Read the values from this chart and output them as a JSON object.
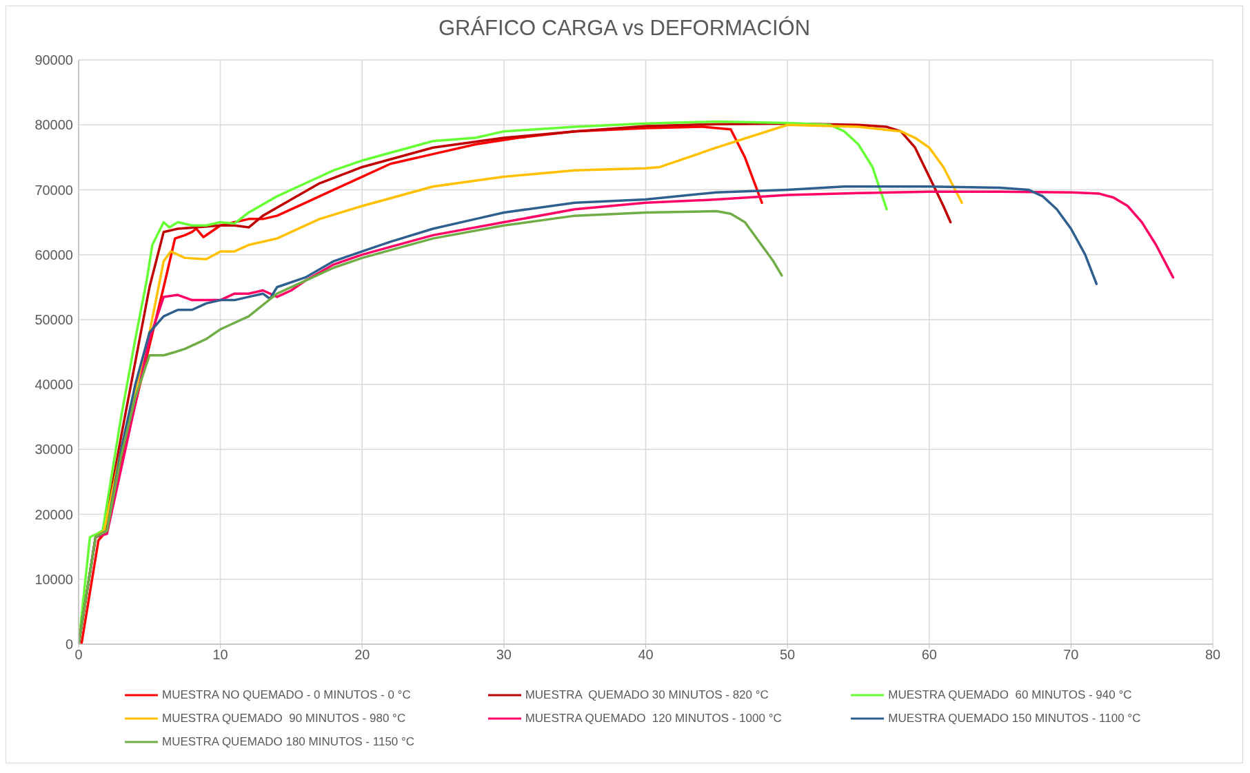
{
  "chart_data": {
    "type": "line",
    "title": "GRÁFICO CARGA vs DEFORMACIÓN",
    "xlim": [
      0,
      80
    ],
    "xticks": [
      0,
      10,
      20,
      30,
      40,
      50,
      60,
      70,
      80
    ],
    "ylim": [
      0,
      90000
    ],
    "yticks": [
      0,
      10000,
      20000,
      30000,
      40000,
      50000,
      60000,
      70000,
      80000,
      90000
    ],
    "grid": true,
    "legend": "bottom",
    "marker": "none",
    "line_style": "solid",
    "series": [
      {
        "name": "MUESTRA NO QUEMADO - 0 MINUTOS - 0 °C",
        "color": "#ff0000",
        "x": [
          0.2,
          1.4,
          1.8,
          3,
          4,
          5,
          6,
          6.8,
          7.5,
          8,
          8.3,
          8.8,
          10,
          11,
          12,
          13,
          14,
          16,
          18,
          20,
          22,
          25,
          28,
          31,
          35,
          40,
          44,
          46,
          47,
          48.2
        ],
        "values": [
          0,
          16000,
          17000,
          28000,
          37000,
          46000,
          55000,
          62500,
          63000,
          63500,
          64000,
          62700,
          64500,
          65000,
          65500,
          65500,
          66000,
          68000,
          70000,
          72000,
          74000,
          75500,
          77000,
          78000,
          79000,
          79500,
          79700,
          79300,
          75000,
          68000
        ]
      },
      {
        "name": "MUESTRA  QUEMADO 30 MINUTOS - 820 °C",
        "color": "#c00000",
        "x": [
          0,
          1.2,
          1.8,
          3,
          5,
          6,
          7,
          10,
          11,
          12,
          13,
          15,
          17,
          20,
          25,
          30,
          35,
          40,
          45,
          50,
          55,
          57,
          58,
          59,
          60,
          61,
          61.5
        ],
        "values": [
          0,
          16500,
          17500,
          32000,
          55000,
          63500,
          64000,
          64500,
          64500,
          64200,
          66000,
          68500,
          71000,
          73500,
          76500,
          78000,
          79000,
          79800,
          80100,
          80200,
          80000,
          79700,
          79000,
          76500,
          72000,
          67500,
          65000
        ]
      },
      {
        "name": "MUESTRA QUEMADO  60 MINUTOS - 940 °C",
        "color": "#66ff33",
        "x": [
          0,
          0.8,
          1.3,
          1.7,
          3,
          4,
          4.8,
          5.2,
          6,
          6.4,
          7,
          8,
          9,
          10,
          11,
          12,
          14,
          16,
          18,
          20,
          25,
          28,
          30,
          35,
          40,
          45,
          50,
          53,
          54,
          55,
          56,
          57
        ],
        "values": [
          0,
          16500,
          17000,
          17500,
          35000,
          47000,
          56000,
          61500,
          65000,
          64200,
          65000,
          64500,
          64500,
          65000,
          64800,
          66500,
          69000,
          71000,
          73000,
          74500,
          77500,
          78000,
          79000,
          79700,
          80200,
          80500,
          80300,
          80000,
          79000,
          77000,
          73500,
          67000
        ]
      },
      {
        "name": "MUESTRA QUEMADO  90 MINUTOS - 980 °C",
        "color": "#ffc000",
        "x": [
          0,
          1.2,
          1.8,
          3,
          5,
          6,
          6.5,
          7.5,
          9,
          10,
          11,
          12,
          14,
          15,
          17,
          20,
          25,
          30,
          35,
          40,
          41,
          45,
          50,
          55,
          58,
          59,
          60,
          61,
          62.3
        ],
        "values": [
          0,
          16500,
          17500,
          30000,
          48000,
          59000,
          60500,
          59500,
          59300,
          60500,
          60500,
          61500,
          62500,
          63500,
          65500,
          67500,
          70500,
          72000,
          73000,
          73300,
          73500,
          76500,
          80000,
          79700,
          79000,
          78000,
          76500,
          73500,
          68000
        ]
      },
      {
        "name": "MUESTRA QUEMADO  120 MINUTOS - 1000 °C",
        "color": "#ff0066",
        "x": [
          0,
          1.2,
          2,
          3,
          4,
          5,
          6,
          7,
          8,
          9,
          10,
          11,
          12,
          13,
          14,
          15,
          16,
          18,
          20,
          25,
          30,
          35,
          40,
          45,
          50,
          55,
          60,
          65,
          70,
          72,
          73,
          74,
          75,
          76,
          77.2
        ],
        "values": [
          0,
          16500,
          17000,
          27000,
          37000,
          47000,
          53500,
          53800,
          53000,
          53000,
          53000,
          54000,
          54000,
          54500,
          53500,
          54500,
          56000,
          58500,
          60000,
          63000,
          65000,
          67000,
          68000,
          68500,
          69200,
          69500,
          69700,
          69700,
          69600,
          69400,
          68800,
          67500,
          65000,
          61500,
          56500
        ]
      },
      {
        "name": "MUESTRA QUEMADO 150 MINUTOS - 1100 °C",
        "color": "#2e5f8e",
        "x": [
          0,
          1.2,
          2,
          3,
          4,
          5,
          6,
          7,
          8,
          9,
          10,
          11,
          12,
          13,
          13.5,
          14,
          16,
          18,
          20,
          22,
          25,
          28,
          30,
          35,
          40,
          45,
          50,
          54,
          60,
          65,
          67,
          68,
          69,
          70,
          71,
          71.8
        ],
        "values": [
          0,
          16500,
          17500,
          30000,
          40000,
          48000,
          50500,
          51500,
          51500,
          52500,
          53000,
          53000,
          53500,
          54000,
          53200,
          55000,
          56500,
          59000,
          60500,
          62000,
          64000,
          65500,
          66500,
          68000,
          68500,
          69600,
          70000,
          70500,
          70500,
          70300,
          70000,
          69000,
          67000,
          64000,
          60000,
          55500
        ]
      },
      {
        "name": "MUESTRA QUEMADO 180 MINUTOS - 1150 °C",
        "color": "#70ad47",
        "x": [
          0,
          1.2,
          2,
          3,
          4,
          5,
          6,
          6.8,
          7.5,
          8,
          9,
          10,
          12,
          14,
          16,
          18,
          20,
          25,
          30,
          35,
          40,
          45,
          46,
          47,
          48,
          49,
          49.6
        ],
        "values": [
          0,
          16500,
          17500,
          29000,
          38000,
          44500,
          44500,
          45000,
          45500,
          46000,
          47000,
          48500,
          50500,
          54000,
          56000,
          58000,
          59500,
          62500,
          64500,
          66000,
          66500,
          66700,
          66300,
          65000,
          62000,
          59000,
          56800
        ]
      }
    ]
  }
}
